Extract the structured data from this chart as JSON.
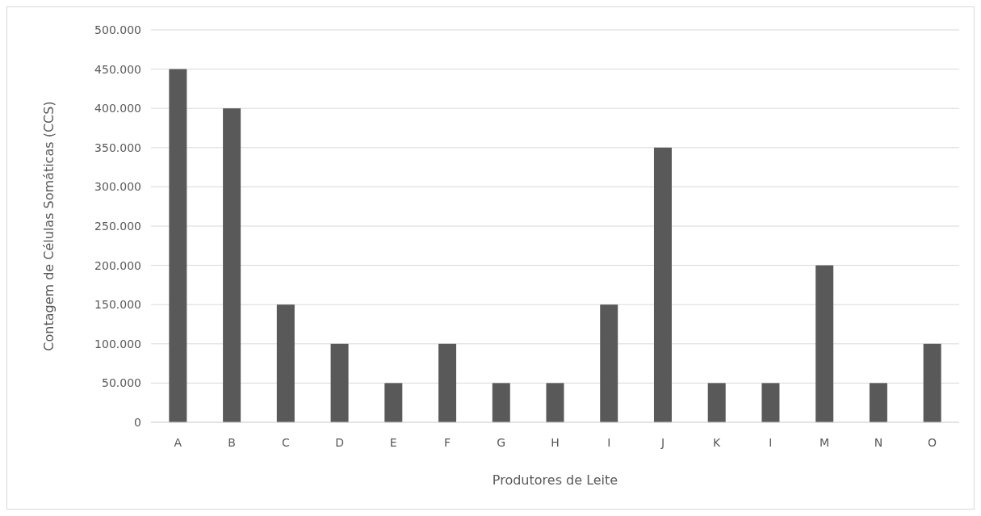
{
  "chart_data": {
    "type": "bar",
    "xlabel": "Produtores de Leite",
    "ylabel": "Contagem de Células Somáticas (CCS)",
    "categories": [
      "A",
      "B",
      "C",
      "D",
      "E",
      "F",
      "G",
      "H",
      "I",
      "J",
      "K",
      "I",
      "M",
      "N",
      "O"
    ],
    "values": [
      450000,
      400000,
      150000,
      100000,
      50000,
      100000,
      50000,
      50000,
      150000,
      350000,
      50000,
      50000,
      200000,
      50000,
      100000
    ],
    "color": "#595959",
    "ylim": [
      0,
      500000
    ],
    "yticks": [
      0,
      {
        "value": 50000,
        "label": "50.000"
      },
      {
        "value": 100000,
        "label": "100.000"
      },
      {
        "value": 150000,
        "label": "150.000"
      },
      {
        "value": 200000,
        "label": "200.000"
      },
      {
        "value": 250000,
        "label": "250.000"
      },
      {
        "value": 300000,
        "label": "300.000"
      },
      {
        "value": 350000,
        "label": "350.000"
      },
      {
        "value": 400000,
        "label": "400.000"
      },
      {
        "value": 450000,
        "label": "450.000"
      },
      {
        "value": 500000,
        "label": "500.000"
      }
    ],
    "grid": "y"
  }
}
